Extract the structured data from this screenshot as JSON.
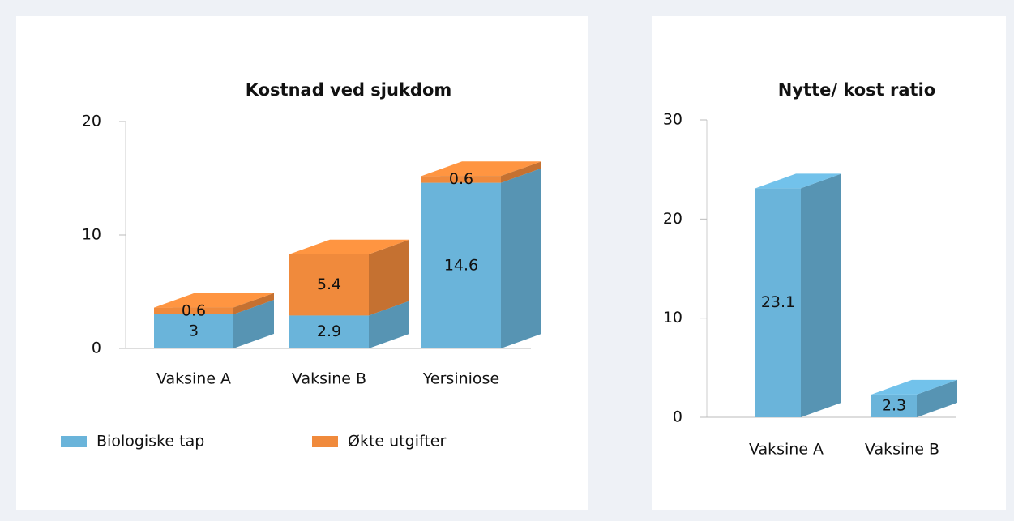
{
  "chart_data": [
    {
      "type": "bar",
      "stacked": true,
      "title": "Kostnad ved sjukdom",
      "categories": [
        "Vaksine A",
        "Vaksine B",
        "Yersiniose"
      ],
      "series": [
        {
          "name": "Biologiske tap",
          "color": "#6ab4da",
          "values": [
            3,
            2.9,
            14.6
          ]
        },
        {
          "name": "Økte utgifter",
          "color": "#f08a3c",
          "values": [
            0.6,
            5.4,
            0.6
          ]
        }
      ],
      "ylim": [
        0,
        20
      ],
      "yticks": [
        0,
        10,
        20
      ],
      "legend": "bottom"
    },
    {
      "type": "bar",
      "title": "Nytte/ kost ratio",
      "categories": [
        "Vaksine A",
        "Vaksine B"
      ],
      "values": [
        23.1,
        2.3
      ],
      "color": "#6ab4da",
      "ylim": [
        0,
        30
      ],
      "yticks": [
        0,
        10,
        20,
        30
      ]
    }
  ]
}
